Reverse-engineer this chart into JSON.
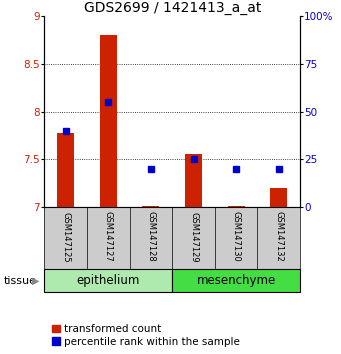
{
  "title": "GDS2699 / 1421413_a_at",
  "samples": [
    "GSM147125",
    "GSM147127",
    "GSM147128",
    "GSM147129",
    "GSM147130",
    "GSM147132"
  ],
  "red_values": [
    7.78,
    8.8,
    7.01,
    7.56,
    7.01,
    7.2
  ],
  "blue_pct": [
    40,
    55,
    20,
    25,
    20,
    20
  ],
  "ylim_left": [
    7.0,
    9.0
  ],
  "ylim_right": [
    0,
    100
  ],
  "yticks_left": [
    7.0,
    7.5,
    8.0,
    8.5,
    9.0
  ],
  "yticks_right": [
    0,
    25,
    50,
    75,
    100
  ],
  "bar_color": "#cc2200",
  "marker_color": "#0000cc",
  "title_fontsize": 10,
  "tick_fontsize": 7.5,
  "sample_fontsize": 6,
  "label_fontsize": 8.5,
  "legend_fontsize": 7.5,
  "bg_plot": "#ffffff",
  "bg_sample": "#cccccc",
  "epi_color": "#aeeaae",
  "mes_color": "#44dd44",
  "tissue_arrow_color": "#888888"
}
